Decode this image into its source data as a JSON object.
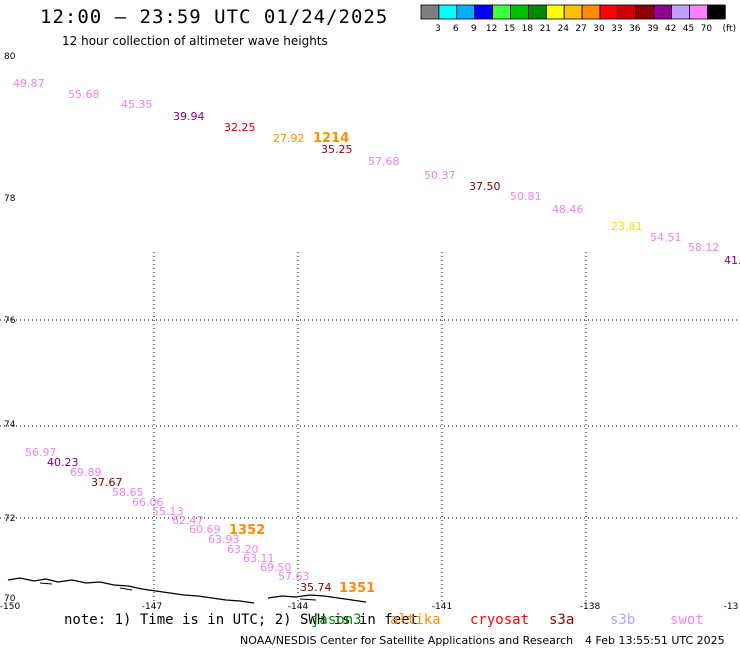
{
  "title": "12:00 – 23:59 UTC 01/24/2025",
  "subtitle": "12 hour collection of altimeter wave heights",
  "scale": {
    "colors": [
      "#7f7f7f",
      "#00ffff",
      "#00b0ff",
      "#0000ff",
      "#40ff40",
      "#00c000",
      "#008800",
      "#ffff00",
      "#ffc000",
      "#ff8c00",
      "#ff0000",
      "#d00000",
      "#900000",
      "#900090",
      "#c0a0ff",
      "#ff80ff",
      "#000000"
    ],
    "labels": [
      "3",
      "6",
      "9",
      "12",
      "15",
      "18",
      "21",
      "24",
      "27",
      "30",
      "33",
      "36",
      "39",
      "42",
      "45",
      "70",
      "(ft)"
    ]
  },
  "lat_labels": [
    "80",
    "78",
    "76",
    "74",
    "72",
    "70"
  ],
  "lon_labels": [
    "-150",
    "-147",
    "-144",
    "-141",
    "-138",
    "-13"
  ],
  "observations": [
    {
      "text": "49.87",
      "color": "#ee82ee"
    },
    {
      "text": "55.68",
      "color": "#ee82ee"
    },
    {
      "text": "45.35",
      "color": "#ee82ee"
    },
    {
      "text": "39.94",
      "color": "#800080"
    },
    {
      "text": "32.25",
      "color": "#cc0000"
    },
    {
      "text": "27.92",
      "color": "#ff8c00"
    },
    {
      "text": "1214",
      "color": "#ff8c00",
      "bold": true
    },
    {
      "text": "35.25",
      "color": "#990000"
    },
    {
      "text": "57.68",
      "color": "#ee82ee"
    },
    {
      "text": "50.37",
      "color": "#ee82ee"
    },
    {
      "text": "37.50",
      "color": "#800000"
    },
    {
      "text": "50.81",
      "color": "#ee82ee"
    },
    {
      "text": "48.46",
      "color": "#ee82ee"
    },
    {
      "text": "23.81",
      "color": "#e6e600"
    },
    {
      "text": "54.51",
      "color": "#ee82ee"
    },
    {
      "text": "58.12",
      "color": "#ee82ee"
    },
    {
      "text": "41.",
      "color": "#800080"
    },
    {
      "text": "56.97",
      "color": "#ee82ee"
    },
    {
      "text": "40.23",
      "color": "#800080"
    },
    {
      "text": "69.89",
      "color": "#ee82ee"
    },
    {
      "text": "37.67",
      "color": "#800000"
    },
    {
      "text": "58.65",
      "color": "#ee82ee"
    },
    {
      "text": "66.06",
      "color": "#ee82ee"
    },
    {
      "text": "55.13",
      "color": "#ee82ee"
    },
    {
      "text": "62.47",
      "color": "#ee82ee"
    },
    {
      "text": "60.69",
      "color": "#ee82ee"
    },
    {
      "text": "1352",
      "color": "#ff8c00",
      "bold": true
    },
    {
      "text": "63.93",
      "color": "#ee82ee"
    },
    {
      "text": "63.20",
      "color": "#ee82ee"
    },
    {
      "text": "63.11",
      "color": "#ee82ee"
    },
    {
      "text": "69.50",
      "color": "#ee82ee"
    },
    {
      "text": "57.63",
      "color": "#ee82ee"
    },
    {
      "text": "35.74",
      "color": "#800000"
    },
    {
      "text": "1351",
      "color": "#ff8c00",
      "bold": true
    }
  ],
  "note": "note: 1) Time is in UTC; 2) SWH is in feet",
  "satellites": [
    {
      "name": "jason3",
      "color": "#008800"
    },
    {
      "name": "altika",
      "color": "#ff8c00"
    },
    {
      "name": "cryosat",
      "color": "#ff0000"
    },
    {
      "name": "s3a",
      "color": "#990000"
    },
    {
      "name": "s3b",
      "color": "#c0a0ff"
    },
    {
      "name": "swot",
      "color": "#ff80ff"
    }
  ],
  "credit": "NOAA/NESDIS Center for Satellite Applications and Research",
  "timestamp": "4 Feb 13:55:51 UTC 2025"
}
